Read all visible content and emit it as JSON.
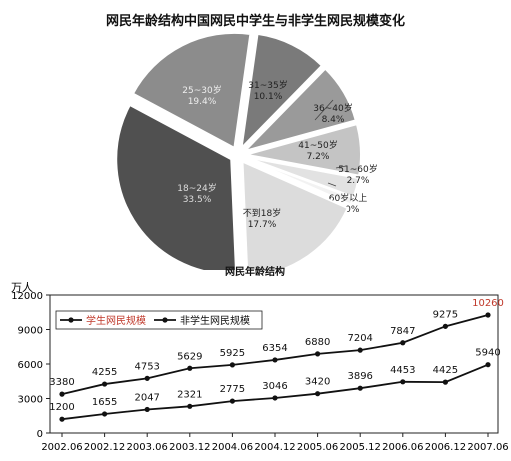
{
  "page_title": "网民年龄结构中国网民中学生与非学生网民规模变化",
  "chart_data": [
    {
      "type": "pie",
      "title": "网民年龄结构",
      "slices": [
        {
          "label": "31~35岁",
          "value": 10.1,
          "pct": "10.1%",
          "color": "#7a7a7a"
        },
        {
          "label": "36~40岁",
          "value": 8.4,
          "pct": "8.4%",
          "color": "#9a9a9a"
        },
        {
          "label": "41~50岁",
          "value": 7.2,
          "pct": "7.2%",
          "color": "#c4c4c4"
        },
        {
          "label": "51~60岁",
          "value": 2.7,
          "pct": "2.7%",
          "color": "#e2e2e2"
        },
        {
          "label": "60岁以上",
          "value": 1.0,
          "pct": "1.0%",
          "color": "#f2f2f2"
        },
        {
          "label": "不到18岁",
          "value": 17.7,
          "pct": "17.7%",
          "color": "#dcdcdc"
        },
        {
          "label": "18~24岁",
          "value": 33.5,
          "pct": "33.5%",
          "color": "#505050"
        },
        {
          "label": "25~30岁",
          "value": 19.4,
          "pct": "19.4%",
          "color": "#8c8c8c"
        }
      ]
    },
    {
      "type": "line",
      "ylabel": "万人",
      "ylim": [
        0,
        12000
      ],
      "yticks": [
        "0",
        "3000",
        "6000",
        "9000",
        "12000"
      ],
      "categories": [
        "2002.06",
        "2002.12",
        "2003.06",
        "2003.12",
        "2004.06",
        "2004.12",
        "2005.06",
        "2005.12",
        "2006.06",
        "2006.12",
        "2007.06"
      ],
      "series": [
        {
          "name": "学生网民规模",
          "values": [
            1200,
            1655,
            2047,
            2321,
            2775,
            3046,
            3420,
            3896,
            4453,
            4425,
            5940
          ],
          "labels": [
            "1200",
            "1655",
            "2047",
            "2321",
            "2775",
            "3046",
            "3420",
            "3896",
            "4453",
            "4425",
            "5940"
          ]
        },
        {
          "name": "非学生网民规模",
          "values": [
            3380,
            4255,
            4753,
            5629,
            5925,
            6354,
            6880,
            7204,
            7847,
            9275,
            10260
          ],
          "labels": [
            "3380",
            "4255",
            "4753",
            "5629",
            "5925",
            "6354",
            "6880",
            "7204",
            "7847",
            "9275",
            "10260"
          ]
        }
      ],
      "legend": "top-left"
    }
  ]
}
